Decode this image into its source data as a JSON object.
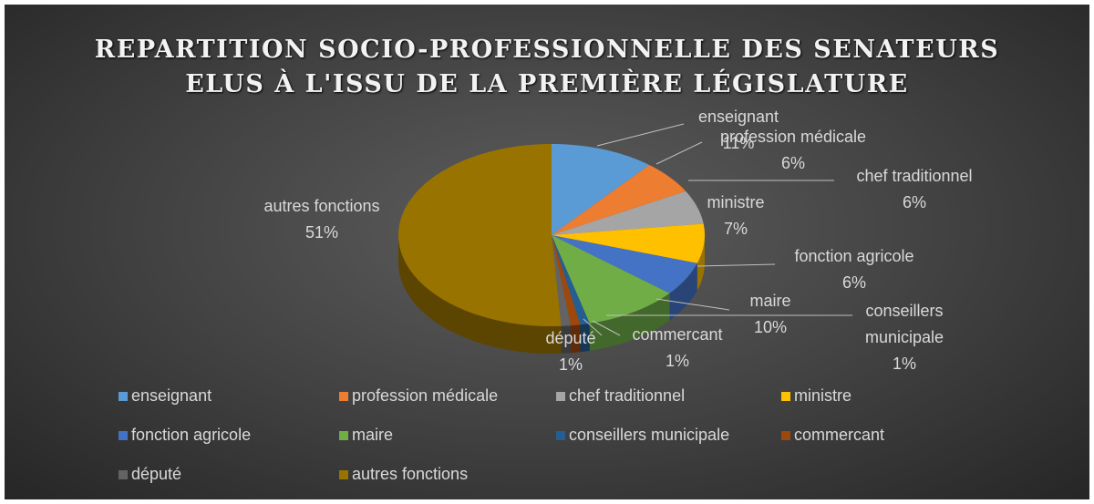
{
  "chart_data": {
    "type": "pie3d",
    "title": [
      "REPARTITION SOCIO-PROFESSIONNELLE DES SENATEURS",
      "ELUS À L'ISSU DE LA PREMIÈRE LÉGISLATURE"
    ],
    "categories": [
      "enseignant",
      "profession médicale",
      "chef traditionnel",
      "ministre",
      "fonction agricole",
      "maire",
      "conseillers municipale",
      "commercant",
      "député",
      "autres fonctions"
    ],
    "values": [
      11,
      6,
      6,
      7,
      6,
      10,
      1,
      1,
      1,
      51
    ],
    "value_labels": [
      "11%",
      "6%",
      "6%",
      "7%",
      "6%",
      "10%",
      "1%",
      "1%",
      "1%",
      "51%"
    ],
    "colors": [
      "#5b9bd5",
      "#ed7d31",
      "#a5a5a5",
      "#ffc000",
      "#4472c4",
      "#70ad47",
      "#255e91",
      "#9e480e",
      "#636363",
      "#997300"
    ],
    "legend": "bottom"
  }
}
